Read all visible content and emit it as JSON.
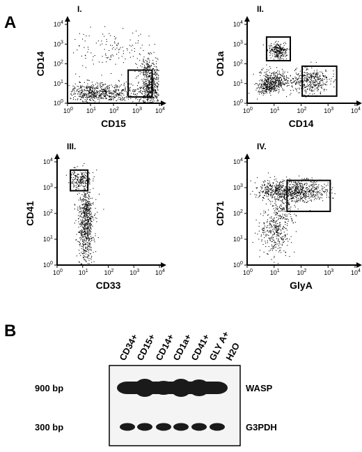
{
  "panel_a": {
    "letter": "A",
    "plots": [
      {
        "num": "I.",
        "xlabel": "CD15",
        "ylabel": "CD14"
      },
      {
        "num": "II.",
        "xlabel": "CD14",
        "ylabel": "CD1a"
      },
      {
        "num": "III.",
        "xlabel": "CD33",
        "ylabel": "CD41"
      },
      {
        "num": "IV.",
        "xlabel": "GlyA",
        "ylabel": "CD71"
      }
    ],
    "tick_base": "10",
    "tick_exps": [
      "0",
      "1",
      "2",
      "3",
      "4"
    ]
  },
  "panel_b": {
    "letter": "B",
    "lanes": [
      "CD34+",
      "CD15+",
      "CD14+",
      "CD1a+",
      "CD41+",
      "GLY A+",
      "H2O"
    ],
    "rows": [
      {
        "size": "900 bp",
        "gene": "WASP"
      },
      {
        "size": "300 bp",
        "gene": "G3PDH"
      }
    ]
  },
  "colors": {
    "ink": "#000000",
    "band": "#1a1a1a",
    "background": "#ffffff"
  }
}
